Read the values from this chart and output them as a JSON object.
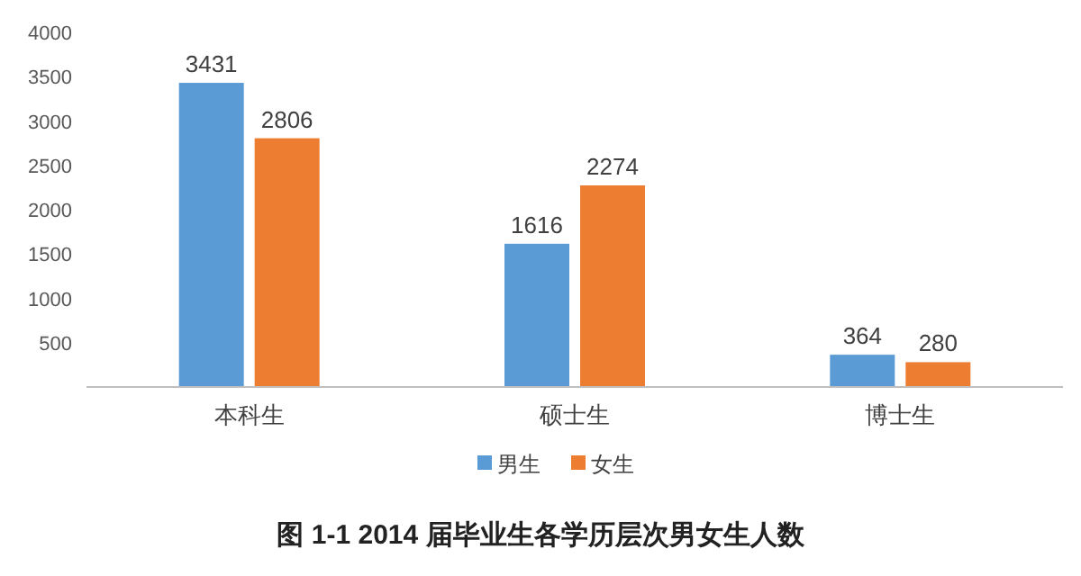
{
  "chart_data": {
    "type": "bar",
    "title": "图 1-1   2014 届毕业生各学历层次男女生人数",
    "categories": [
      "本科生",
      "硕士生",
      "博士生"
    ],
    "series": [
      {
        "name": "男生",
        "color": "#5b9bd5",
        "values": [
          3431,
          1616,
          364
        ]
      },
      {
        "name": "女生",
        "color": "#ed7d31",
        "values": [
          2806,
          2274,
          280
        ]
      }
    ],
    "ylim": [
      0,
      4000
    ],
    "yticks": [
      500,
      1000,
      1500,
      2000,
      2500,
      3000,
      3500,
      4000
    ],
    "data_labels": true,
    "legend": "bottom",
    "grid": false
  }
}
